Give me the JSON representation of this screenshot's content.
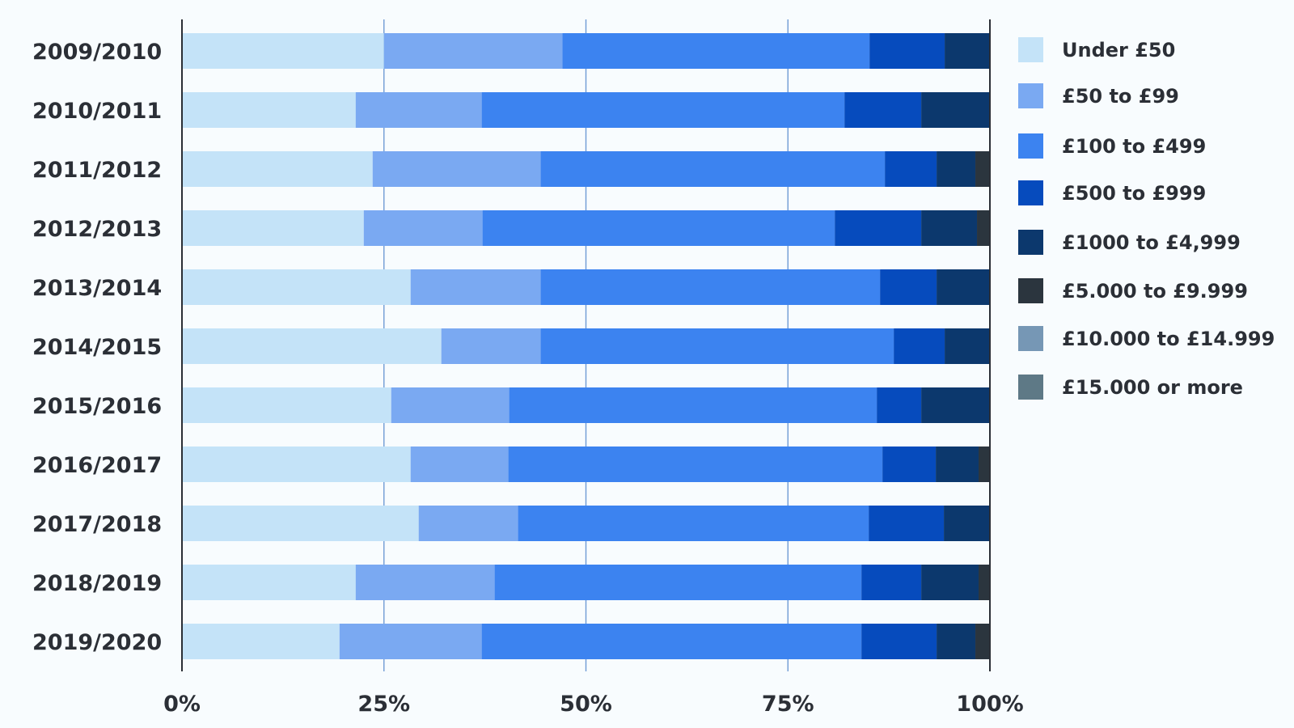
{
  "chart_data": {
    "type": "bar",
    "orientation": "horizontal",
    "stacked": true,
    "normalized": true,
    "categories": [
      "2009/2010",
      "2010/2011",
      "2011/2012",
      "2012/2013",
      "2013/2014",
      "2014/2015",
      "2015/2016",
      "2016/2017",
      "2017/2018",
      "2018/2019",
      "2019/2020"
    ],
    "series": [
      {
        "name": "Under £50",
        "color": "#c4e3f8",
        "values": [
          25,
          21.5,
          23.6,
          22.5,
          28.3,
          32.1,
          25.9,
          28.3,
          29.3,
          21.5,
          19.5
        ]
      },
      {
        "name": "£50 to £99",
        "color": "#7aa9f2",
        "values": [
          22.1,
          15.6,
          20.8,
          14.7,
          16.1,
          12.3,
          14.6,
          12.1,
          12.3,
          17.2,
          17.6
        ]
      },
      {
        "name": "£100 to £499",
        "color": "#3c83f0",
        "values": [
          38,
          44.9,
          42.6,
          43.6,
          42,
          43.7,
          45.5,
          46.3,
          43.4,
          45.4,
          47
        ]
      },
      {
        "name": "£500 to £999",
        "color": "#064bbd",
        "values": [
          9.3,
          9.5,
          6.4,
          10.7,
          7,
          6.3,
          5.5,
          6.6,
          9.3,
          7.4,
          9.3
        ]
      },
      {
        "name": "£1000 to £4,999",
        "color": "#0c386d",
        "values": [
          5.6,
          8.5,
          4.8,
          6.9,
          6.6,
          5.6,
          8.5,
          5.3,
          5.7,
          7.1,
          4.8
        ]
      },
      {
        "name": "£5.000 to £9.999",
        "color": "#2b353e",
        "values": [
          0,
          0,
          1.8,
          1.6,
          0,
          0,
          0,
          1.4,
          0,
          1.4,
          1.8
        ]
      },
      {
        "name": "£10.000 to £14.999",
        "color": "#7697b5",
        "values": [
          0,
          0,
          0,
          0,
          0,
          0,
          0,
          0,
          0,
          0,
          0
        ]
      },
      {
        "name": "£15.000 or more",
        "color": "#5e7986",
        "values": [
          0,
          0,
          0,
          0,
          0,
          0,
          0,
          0,
          0,
          0,
          0
        ]
      }
    ],
    "x_ticks": [
      "0%",
      "25%",
      "50%",
      "75%",
      "100%"
    ],
    "xlim": [
      0,
      100
    ],
    "grid": true,
    "legend": "right",
    "title": "",
    "xlabel": "",
    "ylabel": ""
  }
}
